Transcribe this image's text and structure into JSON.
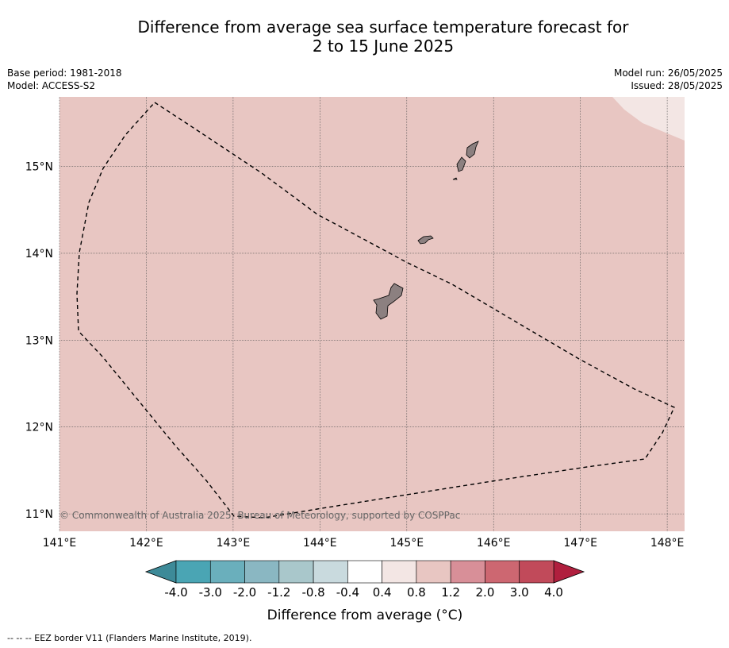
{
  "title_line1": "Difference from average sea surface temperature forecast for",
  "title_line2": "2 to 15 June 2025",
  "base_period": "Base period: 1981-2018",
  "model": "Model: ACCESS-S2",
  "model_run": "Model run: 26/05/2025",
  "issued": "Issued: 28/05/2025",
  "copyright": "© Commonwealth of Australia 2025, Bureau of Meteorology, supported by COSPPac",
  "footnote": "-- -- -- EEZ border V11 (Flanders Marine Institute, 2019).",
  "map": {
    "lon_range": [
      141.0,
      148.2
    ],
    "lat_range": [
      10.8,
      15.8
    ],
    "lon_ticks": [
      {
        "value": 141,
        "label": "141°E"
      },
      {
        "value": 142,
        "label": "142°E"
      },
      {
        "value": 143,
        "label": "143°E"
      },
      {
        "value": 144,
        "label": "144°E"
      },
      {
        "value": 145,
        "label": "145°E"
      },
      {
        "value": 146,
        "label": "146°E"
      },
      {
        "value": 147,
        "label": "147°E"
      },
      {
        "value": 148,
        "label": "148°E"
      }
    ],
    "lat_ticks": [
      {
        "value": 15,
        "label": "15°N"
      },
      {
        "value": 14,
        "label": "14°N"
      },
      {
        "value": 13,
        "label": "13°N"
      },
      {
        "value": 12,
        "label": "12°N"
      },
      {
        "value": 11,
        "label": "11°N"
      }
    ],
    "background_color": "#e8c6c2",
    "corner_color": "#f3e6e4",
    "land_color": "#8c8080"
  },
  "colorbar": {
    "title": "Difference from average (°C)",
    "labels": [
      "-4.0",
      "-3.0",
      "-2.0",
      "-1.2",
      "-0.8",
      "-0.4",
      "0.4",
      "0.8",
      "1.2",
      "2.0",
      "3.0",
      "4.0"
    ],
    "colors": [
      "#4aa5b4",
      "#6aafbc",
      "#8ab7c2",
      "#a9c7cb",
      "#c9dade",
      "#ffffff",
      "#f3e6e4",
      "#e8c6c2",
      "#d88f98",
      "#cd6771",
      "#c14a5a"
    ],
    "under_color": "#3d8a98",
    "over_color": "#b01f3e"
  }
}
